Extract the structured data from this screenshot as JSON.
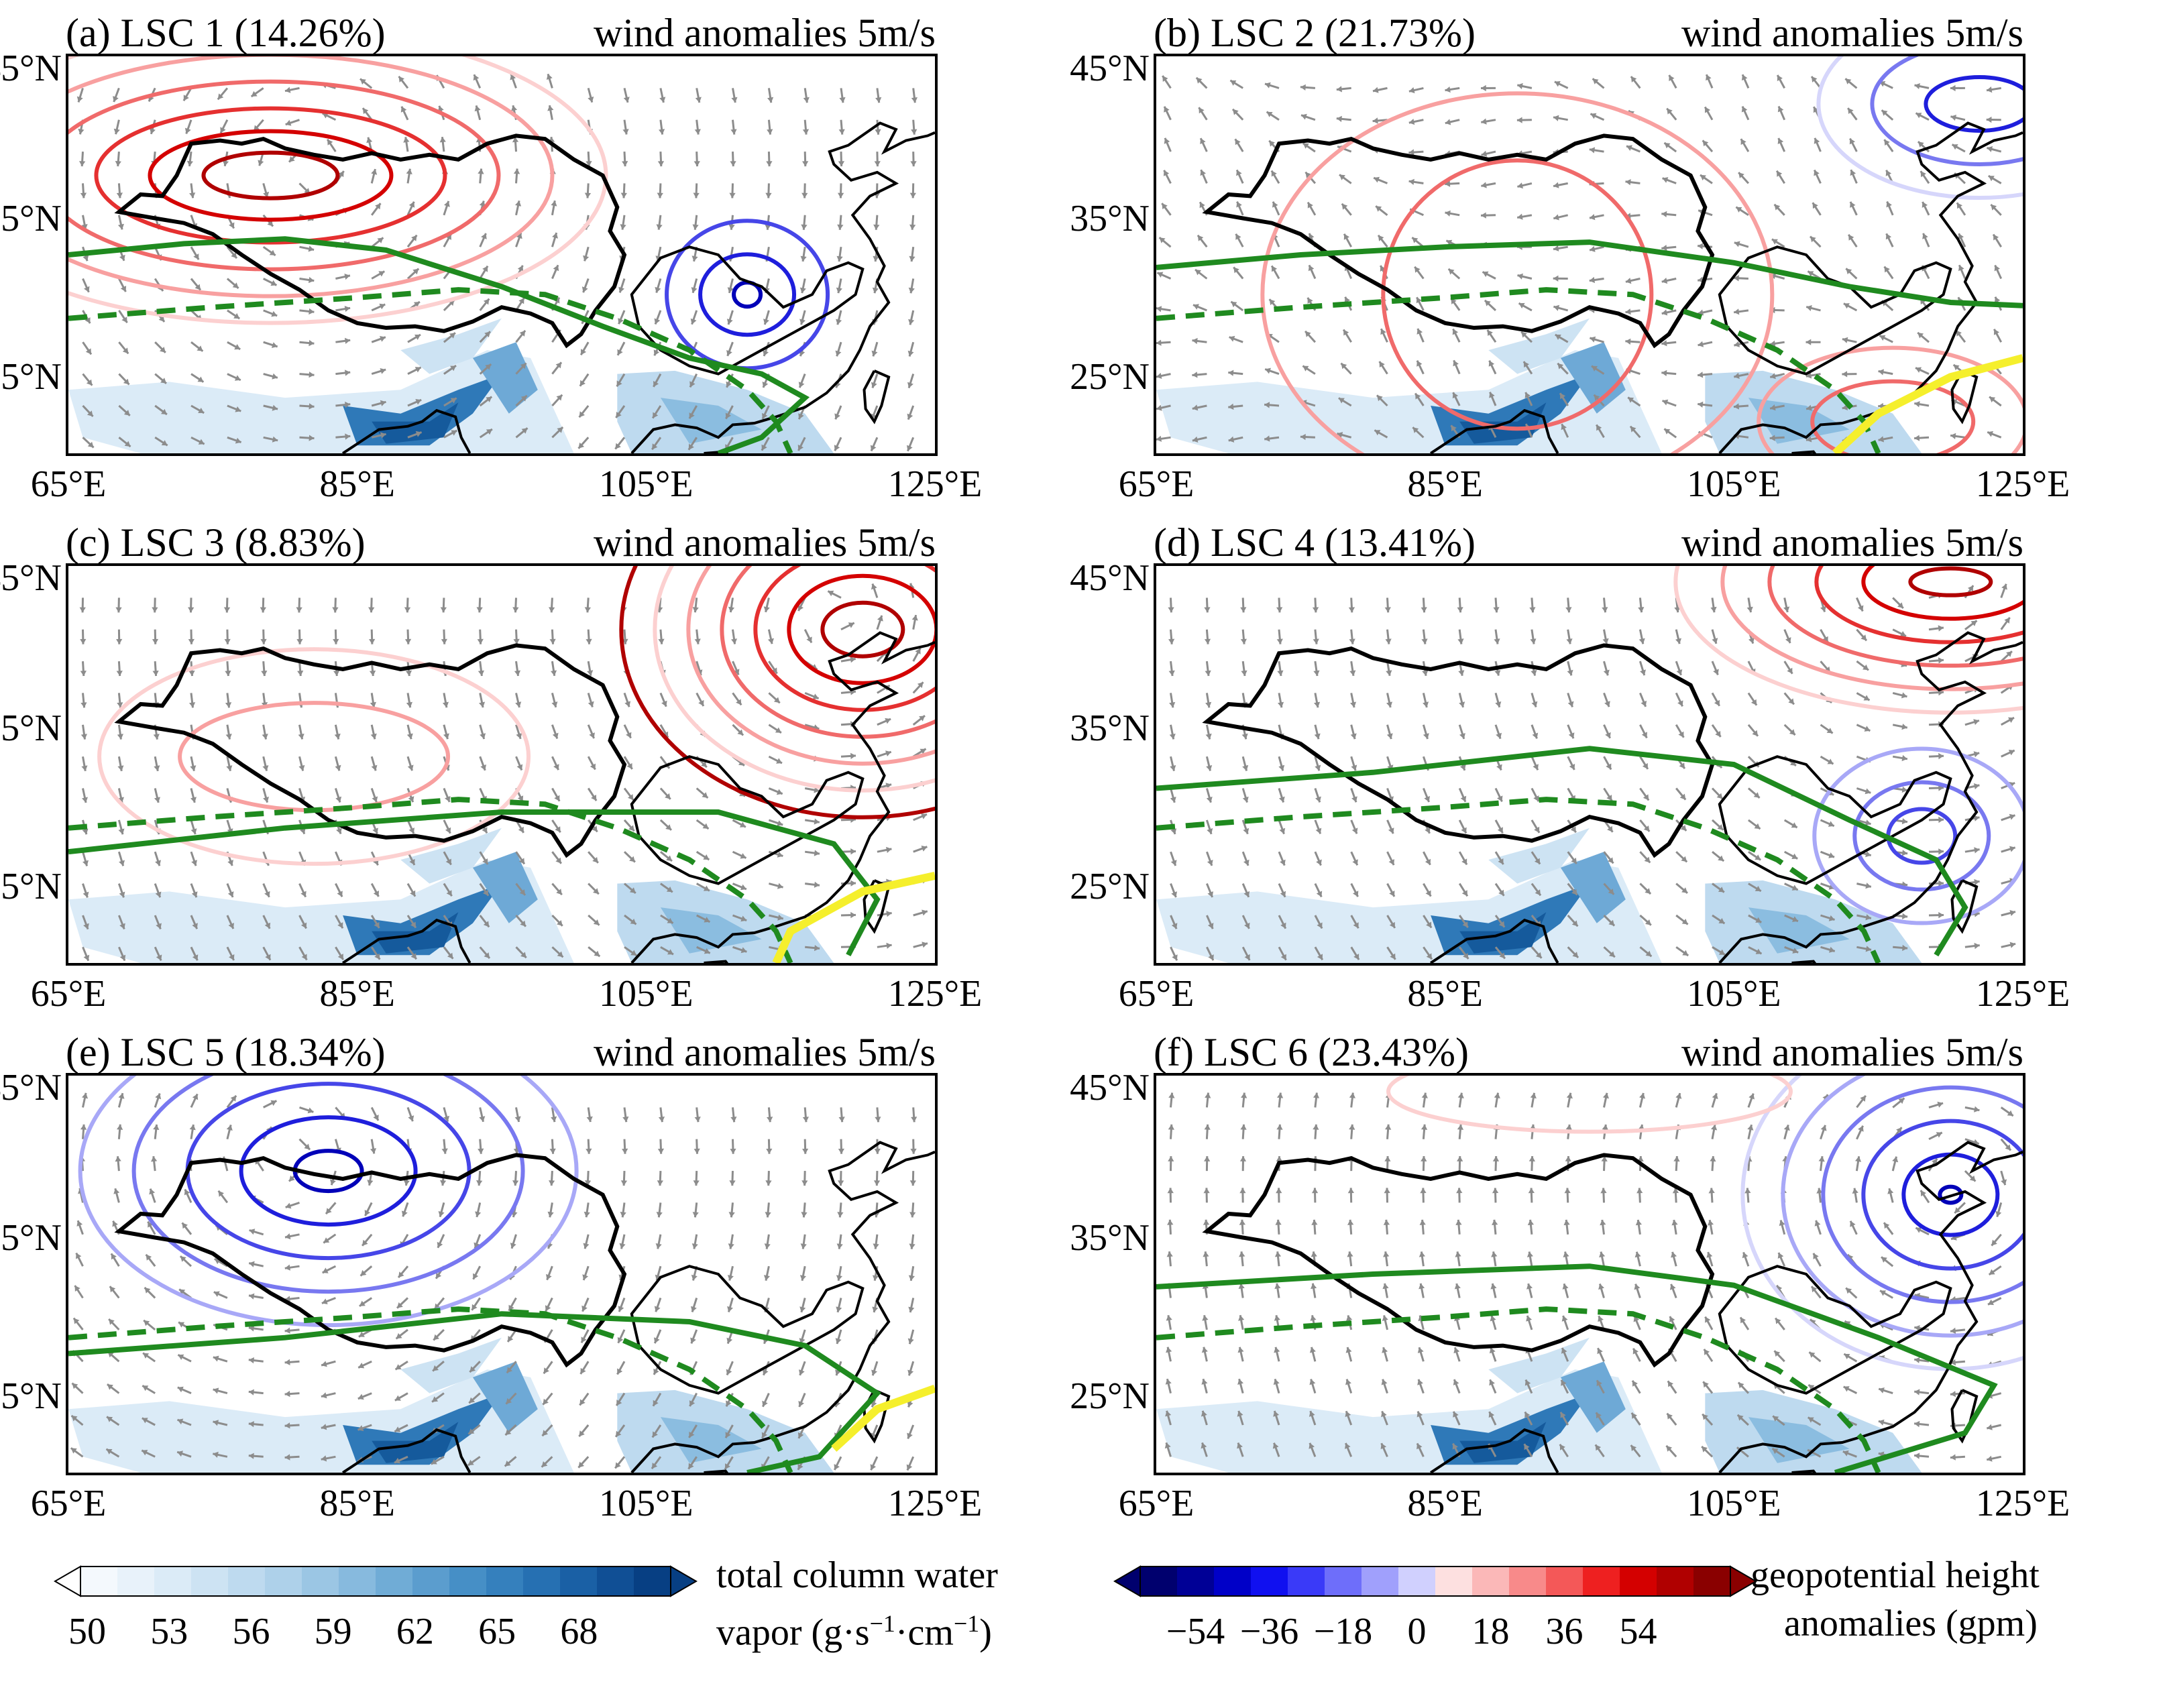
{
  "panels": [
    {
      "id": "a",
      "title": "(a)  LSC 1 (14.26%)",
      "wind_label": "wind anomalies 5m/s",
      "pattern": "tp_high_east_low",
      "gph_sign": "pos_west"
    },
    {
      "id": "b",
      "title": "(b)  LSC 2 (21.73%)",
      "wind_label": "wind anomalies 5m/s",
      "pattern": "weak_pos",
      "gph_sign": "pos_weak"
    },
    {
      "id": "c",
      "title": "(c)  LSC 3 (8.83%)",
      "wind_label": "wind anomalies 5m/s",
      "pattern": "east_high",
      "gph_sign": "pos_east"
    },
    {
      "id": "d",
      "title": "(d)  LSC 4 (13.41%)",
      "wind_label": "wind anomalies 5m/s",
      "pattern": "northeast_high",
      "gph_sign": "pos_northeast"
    },
    {
      "id": "e",
      "title": "(e)  LSC 5 (18.34%)",
      "wind_label": "wind anomalies 5m/s",
      "pattern": "tp_low",
      "gph_sign": "neg_west"
    },
    {
      "id": "f",
      "title": "(f)  LSC 6 (23.43%)",
      "wind_label": "wind anomalies 5m/s",
      "pattern": "east_low",
      "gph_sign": "neg_east"
    }
  ],
  "axes": {
    "lat_ticks": [
      "45°N",
      "35°N",
      "25°N"
    ],
    "lon_ticks": [
      "65°E",
      "85°E",
      "105°E",
      "125°E"
    ],
    "lon_range": [
      65,
      125
    ],
    "lat_range": [
      20,
      45
    ]
  },
  "colorbars": {
    "tcwv": {
      "label_line1": "total column water",
      "label_line2": "vapor (g·s",
      "label_sup1": "−1",
      "label_mid": "·cm",
      "label_sup2": "−1",
      "label_end": ")",
      "ticks": [
        "50",
        "53",
        "56",
        "59",
        "62",
        "65",
        "68"
      ],
      "colors": [
        "#f4f9fd",
        "#e8f2fa",
        "#dbebf7",
        "#cde3f3",
        "#bedaef",
        "#aed1ea",
        "#9bc6e4",
        "#87bade",
        "#70acd6",
        "#5b9dce",
        "#468fc6",
        "#3580bd",
        "#2670b2",
        "#1a60a5",
        "#104f95",
        "#073f83"
      ]
    },
    "gph": {
      "label_line1": "geopotential height",
      "label_line2": "anomalies (gpm)",
      "ticks": [
        "−54",
        "−36",
        "−18",
        "0",
        "18",
        "36",
        "54"
      ],
      "colors": [
        "#00006e",
        "#000096",
        "#0000c8",
        "#1010f0",
        "#3a3af8",
        "#6e6efa",
        "#a0a0fc",
        "#d0d0fe",
        "#fde0e0",
        "#fbb8b8",
        "#f88a8a",
        "#f45858",
        "#ee2020",
        "#d40000",
        "#b00000",
        "#8a0000"
      ]
    }
  }
}
